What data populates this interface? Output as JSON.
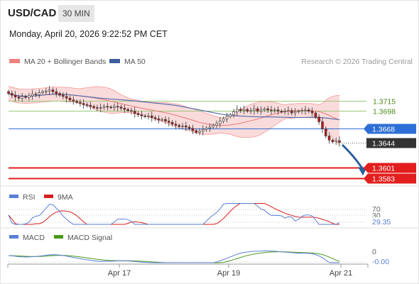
{
  "header": {
    "symbol": "USD/CAD",
    "timeframe": "30 MIN",
    "datetime": "Monday, April 20, 2026 9:22:52 PM CET"
  },
  "chart_data": {
    "type": "candlestick",
    "legend": {
      "bollinger": "MA 20 + Bollinger Bands",
      "ma50": "MA 50",
      "copyright": "Research © 2026 Trading Central"
    },
    "x_tick_labels": [
      "Apr 17",
      "Apr 19",
      "Apr 21"
    ],
    "price_ylim": [
      1.3575,
      1.3765
    ],
    "levels": [
      {
        "name": "res-2",
        "label": "1.3715",
        "value": 1.3715,
        "kind": "resistance",
        "color": "#9dc77a"
      },
      {
        "name": "res-1",
        "label": "1.3698",
        "value": 1.3698,
        "kind": "resistance",
        "color": "#9dc77a"
      },
      {
        "name": "pivot",
        "label": "1.3668",
        "value": 1.3668,
        "kind": "pivot",
        "color": "#2d6fd6"
      },
      {
        "name": "sup-1",
        "label": "1.3601",
        "value": 1.3601,
        "kind": "support",
        "color": "#e31e1e"
      },
      {
        "name": "sup-2",
        "label": "1.3583",
        "value": 1.3583,
        "kind": "support",
        "color": "#e31e1e"
      }
    ],
    "last_price": {
      "label": "1.3644",
      "value": 1.3644
    },
    "forecast_arrow": {
      "from": 1.364,
      "to": 1.3588,
      "color": "#2b5f9e"
    },
    "candles_close": [
      1.3727,
      1.3724,
      1.3721,
      1.3719,
      1.3722,
      1.372,
      1.3723,
      1.3726,
      1.3725,
      1.3728,
      1.373,
      1.3731,
      1.3733,
      1.373,
      1.3727,
      1.3724,
      1.3722,
      1.3719,
      1.3716,
      1.3714,
      1.3712,
      1.371,
      1.3708,
      1.3707,
      1.3705,
      1.3703,
      1.3702,
      1.3703,
      1.3705,
      1.3704,
      1.3703,
      1.3705,
      1.3704,
      1.3702,
      1.37,
      1.3698,
      1.3697,
      1.3693,
      1.3691,
      1.3689,
      1.3688,
      1.3689,
      1.3686,
      1.3684,
      1.3682,
      1.3683,
      1.368,
      1.3678,
      1.3675,
      1.3673,
      1.3671,
      1.3672,
      1.367,
      1.3668,
      1.3664,
      1.3661,
      1.3663,
      1.3666,
      1.3668,
      1.367,
      1.3673,
      1.3676,
      1.368,
      1.3684,
      1.3688,
      1.3691,
      1.3696,
      1.37,
      1.3698,
      1.37,
      1.3697,
      1.3698,
      1.3701,
      1.3697,
      1.3699,
      1.3701,
      1.3699,
      1.3698,
      1.3699,
      1.3697,
      1.3696,
      1.3697,
      1.3698,
      1.3694,
      1.3696,
      1.3697,
      1.3698,
      1.3699,
      1.3697,
      1.3694,
      1.3687,
      1.3679,
      1.3667,
      1.3655,
      1.3648,
      1.3645,
      1.3647,
      1.3644
    ],
    "rsi": {
      "legend": [
        "RSI",
        "9MA"
      ],
      "levels": [
        {
          "label": "70",
          "value": 70
        },
        {
          "label": "30",
          "value": 30
        }
      ],
      "last_label": "29.35",
      "last_value": 29.35
    },
    "macd": {
      "legend": [
        "MACD",
        "MACD Signal"
      ],
      "zero_label": "0",
      "last_label": "-0.00"
    }
  },
  "colors": {
    "up_candle": "#3b3b3b",
    "down_candle": "#c01818",
    "bollinger_fill": "#f8cfcf",
    "bollinger_line": "#f08080",
    "ma20": "#e87a7a",
    "ma50": "#4a66a8",
    "rsi": "#5b7fd6",
    "rsi_ma": "#d62020",
    "macd": "#5b7fd6",
    "macd_signal": "#4a9a1a"
  }
}
